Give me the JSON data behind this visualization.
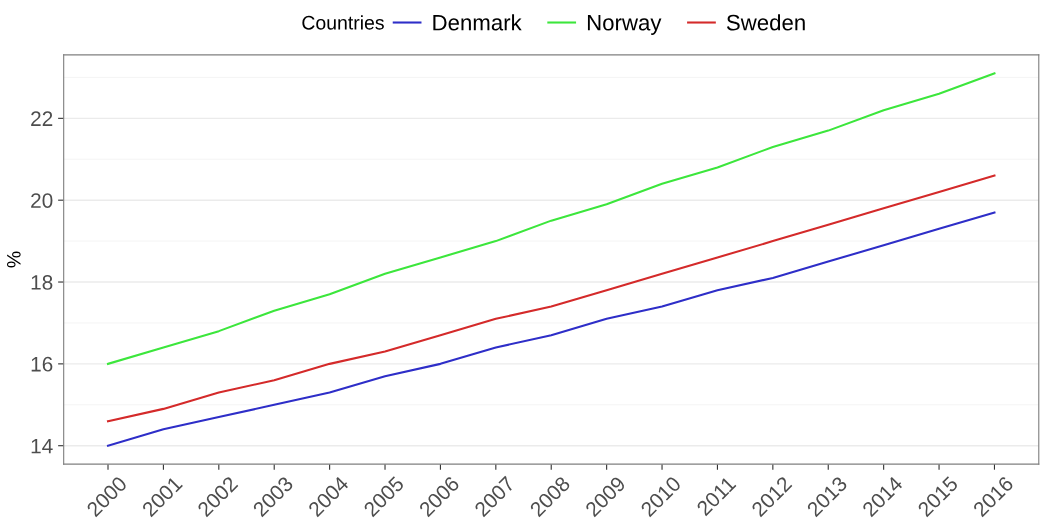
{
  "chart_data": {
    "type": "line",
    "ylabel": "%",
    "legend_title": "Countries",
    "legend": "top",
    "categories": [
      "2000",
      "2001",
      "2002",
      "2003",
      "2004",
      "2005",
      "2006",
      "2007",
      "2008",
      "2009",
      "2010",
      "2011",
      "2012",
      "2013",
      "2014",
      "2015",
      "2016"
    ],
    "series": [
      {
        "name": "Denmark",
        "color": "#2e2ec8",
        "values": [
          14.0,
          14.4,
          14.7,
          15.0,
          15.3,
          15.7,
          16.0,
          16.4,
          16.7,
          17.1,
          17.4,
          17.8,
          18.1,
          18.5,
          18.9,
          19.3,
          19.7
        ]
      },
      {
        "name": "Norway",
        "color": "#3ce63c",
        "values": [
          16.0,
          16.4,
          16.8,
          17.3,
          17.7,
          18.2,
          18.6,
          19.0,
          19.5,
          19.9,
          20.4,
          20.8,
          21.3,
          21.7,
          22.2,
          22.6,
          23.1
        ]
      },
      {
        "name": "Sweden",
        "color": "#d42a2a",
        "values": [
          14.6,
          14.9,
          15.3,
          15.6,
          16.0,
          16.3,
          16.7,
          17.1,
          17.4,
          17.8,
          18.2,
          18.6,
          19.0,
          19.4,
          19.8,
          20.2,
          20.6
        ]
      }
    ],
    "ylim": [
      13.55,
      23.55
    ],
    "yticks": [
      14,
      16,
      18,
      20,
      22
    ],
    "grid": "y",
    "marker": "none",
    "line_style": "solid"
  }
}
